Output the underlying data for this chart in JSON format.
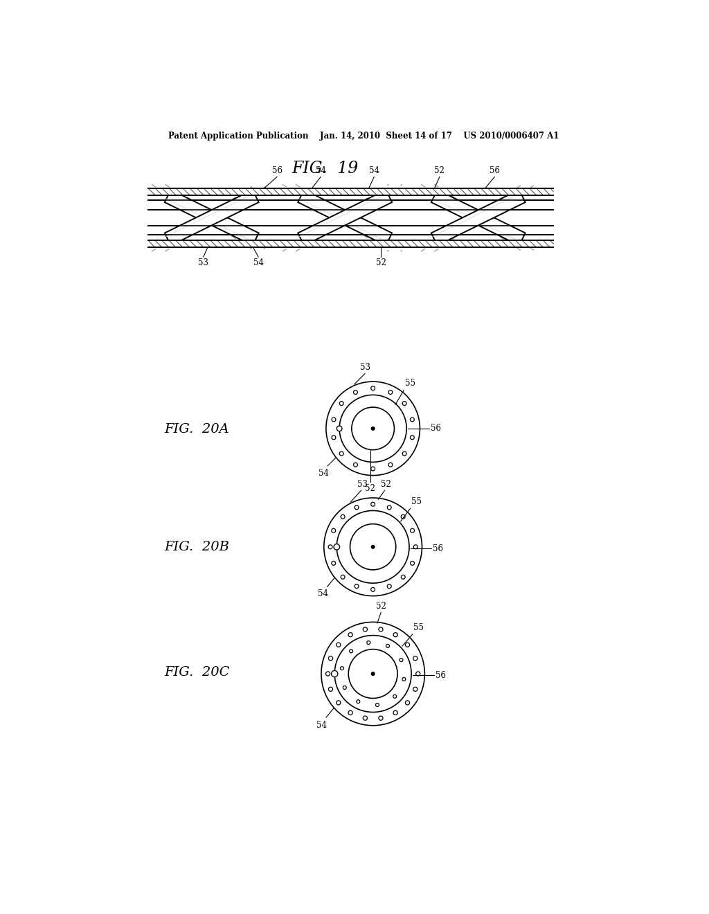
{
  "bg_color": "#ffffff",
  "line_color": "#000000",
  "header_text": "Patent Application Publication    Jan. 14, 2010  Sheet 14 of 17    US 2010/0006407 A1",
  "fig19_title": "FIG.  19",
  "fig20a_title": "FIG.  20A",
  "fig20b_title": "FIG.  20B",
  "fig20c_title": "FIG.  20C"
}
